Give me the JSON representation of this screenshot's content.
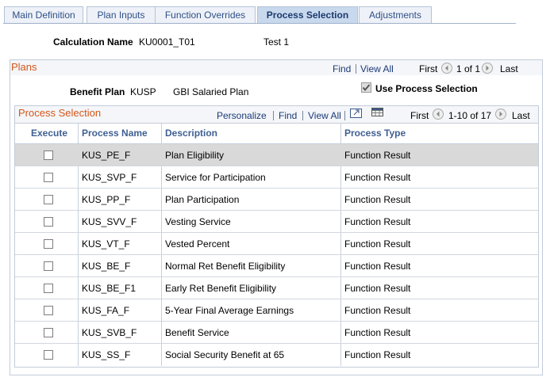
{
  "tabs": [
    "Main Definition",
    "Plan Inputs",
    "Function Overrides",
    "Process Selection",
    "Adjustments"
  ],
  "calculation": {
    "label": "Calculation Name",
    "id": "KU0001_T01",
    "description": "Test 1"
  },
  "plans": {
    "title": "Plans",
    "nav": {
      "find": "Find",
      "view_all": "View All",
      "first": "First",
      "count": "1 of 1",
      "last": "Last"
    },
    "benefit_plan": {
      "label": "Benefit Plan",
      "code": "KUSP",
      "name": "GBI Salaried Plan"
    },
    "use_process_selection": {
      "label": "Use Process Selection",
      "checked": true
    }
  },
  "grid": {
    "title": "Process Selection",
    "nav": {
      "personalize": "Personalize",
      "find": "Find",
      "view_all": "View All",
      "first": "First",
      "count": "1-10 of 17",
      "last": "Last"
    },
    "columns": [
      "Execute",
      "Process Name",
      "Description",
      "Process Type"
    ],
    "rows": [
      [
        "KUS_PE_F",
        "Plan Eligibility",
        "Function Result"
      ],
      [
        "KUS_SVP_F",
        "Service for Participation",
        "Function Result"
      ],
      [
        "KUS_PP_F",
        "Plan Participation",
        "Function Result"
      ],
      [
        "KUS_SVV_F",
        "Vesting Service",
        "Function Result"
      ],
      [
        "KUS_VT_F",
        "Vested Percent",
        "Function Result"
      ],
      [
        "KUS_BE_F",
        "Normal Ret Benefit Eligibility",
        "Function Result"
      ],
      [
        "KUS_BE_F1",
        "Early Ret Benefit Eligibility",
        "Function Result"
      ],
      [
        "KUS_FA_F",
        "5-Year Final Average Earnings",
        "Function Result"
      ],
      [
        "KUS_SVB_F",
        "Benefit Service",
        "Function Result"
      ],
      [
        "KUS_SS_F",
        "Social Security Benefit at 65",
        "Function Result"
      ]
    ]
  }
}
